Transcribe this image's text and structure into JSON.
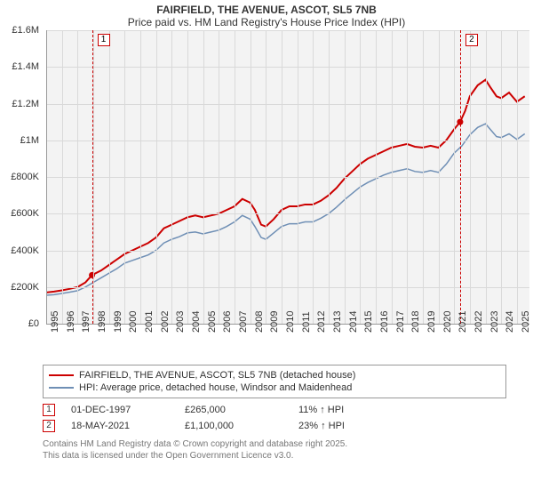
{
  "title_line1": "FAIRFIELD, THE AVENUE, ASCOT, SL5 7NB",
  "title_line2": "Price paid vs. HM Land Registry's House Price Index (HPI)",
  "chart": {
    "type": "line",
    "background_color": "#f3f3f3",
    "grid_color": "#d9d9d9",
    "x": {
      "min": 1995,
      "max": 2025.8,
      "ticks": [
        1995,
        1996,
        1997,
        1998,
        1999,
        2000,
        2001,
        2002,
        2003,
        2004,
        2005,
        2006,
        2007,
        2008,
        2009,
        2010,
        2011,
        2012,
        2013,
        2014,
        2015,
        2016,
        2017,
        2018,
        2019,
        2020,
        2021,
        2022,
        2023,
        2024,
        2025
      ],
      "label_fontsize": 11,
      "label_rotation": -90
    },
    "y": {
      "min": 0,
      "max": 1600000,
      "ticks": [
        0,
        200000,
        400000,
        600000,
        800000,
        1000000,
        1200000,
        1400000,
        1600000
      ],
      "tick_labels": [
        "£0",
        "£200K",
        "£400K",
        "£600K",
        "£800K",
        "£1M",
        "£1.2M",
        "£1.4M",
        "£1.6M"
      ],
      "label_fontsize": 11
    },
    "series": [
      {
        "name": "FAIRFIELD, THE AVENUE, ASCOT, SL5 7NB (detached house)",
        "color": "#cc0000",
        "width": 2,
        "points": [
          [
            1995,
            170000
          ],
          [
            1995.5,
            175000
          ],
          [
            1996,
            182000
          ],
          [
            1996.5,
            190000
          ],
          [
            1997,
            200000
          ],
          [
            1997.5,
            225000
          ],
          [
            1997.92,
            265000
          ],
          [
            1998.5,
            290000
          ],
          [
            1999,
            320000
          ],
          [
            1999.5,
            350000
          ],
          [
            2000,
            380000
          ],
          [
            2000.5,
            400000
          ],
          [
            2001,
            420000
          ],
          [
            2001.5,
            440000
          ],
          [
            2002,
            470000
          ],
          [
            2002.5,
            520000
          ],
          [
            2003,
            540000
          ],
          [
            2003.5,
            560000
          ],
          [
            2004,
            580000
          ],
          [
            2004.5,
            590000
          ],
          [
            2005,
            580000
          ],
          [
            2005.5,
            590000
          ],
          [
            2006,
            600000
          ],
          [
            2006.5,
            620000
          ],
          [
            2007,
            640000
          ],
          [
            2007.5,
            680000
          ],
          [
            2008,
            660000
          ],
          [
            2008.3,
            620000
          ],
          [
            2008.7,
            540000
          ],
          [
            2009,
            530000
          ],
          [
            2009.5,
            570000
          ],
          [
            2010,
            620000
          ],
          [
            2010.5,
            640000
          ],
          [
            2011,
            640000
          ],
          [
            2011.5,
            650000
          ],
          [
            2012,
            650000
          ],
          [
            2012.5,
            670000
          ],
          [
            2013,
            700000
          ],
          [
            2013.5,
            740000
          ],
          [
            2014,
            790000
          ],
          [
            2014.5,
            830000
          ],
          [
            2015,
            870000
          ],
          [
            2015.5,
            900000
          ],
          [
            2016,
            920000
          ],
          [
            2016.5,
            940000
          ],
          [
            2017,
            960000
          ],
          [
            2017.5,
            970000
          ],
          [
            2018,
            980000
          ],
          [
            2018.5,
            965000
          ],
          [
            2019,
            960000
          ],
          [
            2019.5,
            970000
          ],
          [
            2020,
            960000
          ],
          [
            2020.5,
            1000000
          ],
          [
            2021,
            1060000
          ],
          [
            2021.38,
            1100000
          ],
          [
            2021.7,
            1160000
          ],
          [
            2022,
            1240000
          ],
          [
            2022.5,
            1300000
          ],
          [
            2023,
            1330000
          ],
          [
            2023.3,
            1290000
          ],
          [
            2023.7,
            1240000
          ],
          [
            2024,
            1230000
          ],
          [
            2024.5,
            1260000
          ],
          [
            2025,
            1210000
          ],
          [
            2025.5,
            1240000
          ]
        ]
      },
      {
        "name": "HPI: Average price, detached house, Windsor and Maidenhead",
        "color": "#6f8fb5",
        "width": 1.5,
        "points": [
          [
            1995,
            155000
          ],
          [
            1995.5,
            158000
          ],
          [
            1996,
            165000
          ],
          [
            1996.5,
            172000
          ],
          [
            1997,
            180000
          ],
          [
            1997.5,
            200000
          ],
          [
            1998,
            225000
          ],
          [
            1998.5,
            250000
          ],
          [
            1999,
            275000
          ],
          [
            1999.5,
            300000
          ],
          [
            2000,
            330000
          ],
          [
            2000.5,
            345000
          ],
          [
            2001,
            360000
          ],
          [
            2001.5,
            375000
          ],
          [
            2002,
            400000
          ],
          [
            2002.5,
            440000
          ],
          [
            2003,
            460000
          ],
          [
            2003.5,
            475000
          ],
          [
            2004,
            495000
          ],
          [
            2004.5,
            500000
          ],
          [
            2005,
            490000
          ],
          [
            2005.5,
            500000
          ],
          [
            2006,
            510000
          ],
          [
            2006.5,
            530000
          ],
          [
            2007,
            555000
          ],
          [
            2007.5,
            590000
          ],
          [
            2008,
            570000
          ],
          [
            2008.3,
            530000
          ],
          [
            2008.7,
            470000
          ],
          [
            2009,
            460000
          ],
          [
            2009.5,
            495000
          ],
          [
            2010,
            530000
          ],
          [
            2010.5,
            545000
          ],
          [
            2011,
            545000
          ],
          [
            2011.5,
            555000
          ],
          [
            2012,
            555000
          ],
          [
            2012.5,
            575000
          ],
          [
            2013,
            600000
          ],
          [
            2013.5,
            635000
          ],
          [
            2014,
            675000
          ],
          [
            2014.5,
            710000
          ],
          [
            2015,
            745000
          ],
          [
            2015.5,
            770000
          ],
          [
            2016,
            790000
          ],
          [
            2016.5,
            810000
          ],
          [
            2017,
            825000
          ],
          [
            2017.5,
            835000
          ],
          [
            2018,
            845000
          ],
          [
            2018.5,
            830000
          ],
          [
            2019,
            825000
          ],
          [
            2019.5,
            835000
          ],
          [
            2020,
            825000
          ],
          [
            2020.5,
            870000
          ],
          [
            2021,
            930000
          ],
          [
            2021.5,
            970000
          ],
          [
            2022,
            1030000
          ],
          [
            2022.5,
            1070000
          ],
          [
            2023,
            1090000
          ],
          [
            2023.3,
            1060000
          ],
          [
            2023.7,
            1020000
          ],
          [
            2024,
            1015000
          ],
          [
            2024.5,
            1035000
          ],
          [
            2025,
            1005000
          ],
          [
            2025.5,
            1035000
          ]
        ]
      }
    ],
    "sale_markers": [
      {
        "n": 1,
        "x": 1997.92,
        "y": 265000
      },
      {
        "n": 2,
        "x": 2021.38,
        "y": 1100000
      }
    ]
  },
  "legend": {
    "items": [
      {
        "color": "#cc0000",
        "label": "FAIRFIELD, THE AVENUE, ASCOT, SL5 7NB (detached house)"
      },
      {
        "color": "#6f8fb5",
        "label": "HPI: Average price, detached house, Windsor and Maidenhead"
      }
    ]
  },
  "sales": [
    {
      "n": "1",
      "date": "01-DEC-1997",
      "price": "£265,000",
      "delta": "11% ↑ HPI"
    },
    {
      "n": "2",
      "date": "18-MAY-2021",
      "price": "£1,100,000",
      "delta": "23% ↑ HPI"
    }
  ],
  "copyright_line1": "Contains HM Land Registry data © Crown copyright and database right 2025.",
  "copyright_line2": "This data is licensed under the Open Government Licence v3.0."
}
